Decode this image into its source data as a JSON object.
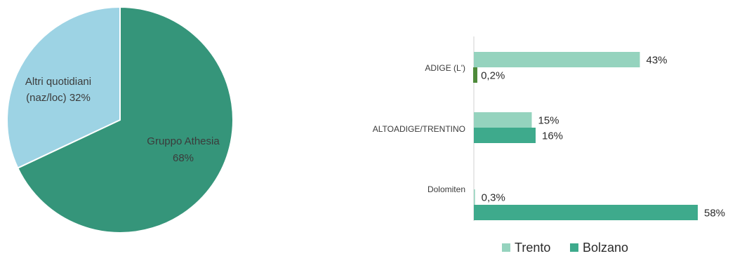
{
  "chart_data": [
    {
      "type": "pie",
      "slices": [
        {
          "label_lines": [
            "Gruppo Athesia",
            "68%"
          ],
          "value": 68,
          "color": "#35957A"
        },
        {
          "label_lines": [
            "Altri quotidiani",
            "(naz/loc) 32%"
          ],
          "value": 32,
          "color": "#9DD3E4"
        }
      ]
    },
    {
      "type": "bar",
      "orientation": "horizontal",
      "categories": [
        "ADIGE (L')",
        "ALTOADIGE/TRENTINO",
        "Dolomiten"
      ],
      "series": [
        {
          "name": "Trento",
          "color": "#95D3BE",
          "values": [
            43,
            15,
            0.3
          ],
          "labels": [
            "43%",
            "15%",
            "0,3%"
          ]
        },
        {
          "name": "Bolzano",
          "color": "#3EAA8C",
          "values": [
            0.2,
            16,
            58
          ],
          "labels": [
            "0,2%",
            "16%",
            "58%"
          ]
        }
      ],
      "special_colors": {
        "ADIGE (L')|Bolzano": "#4E8A3A"
      },
      "xlim": [
        0,
        60
      ],
      "legend_position": "bottom"
    }
  ]
}
